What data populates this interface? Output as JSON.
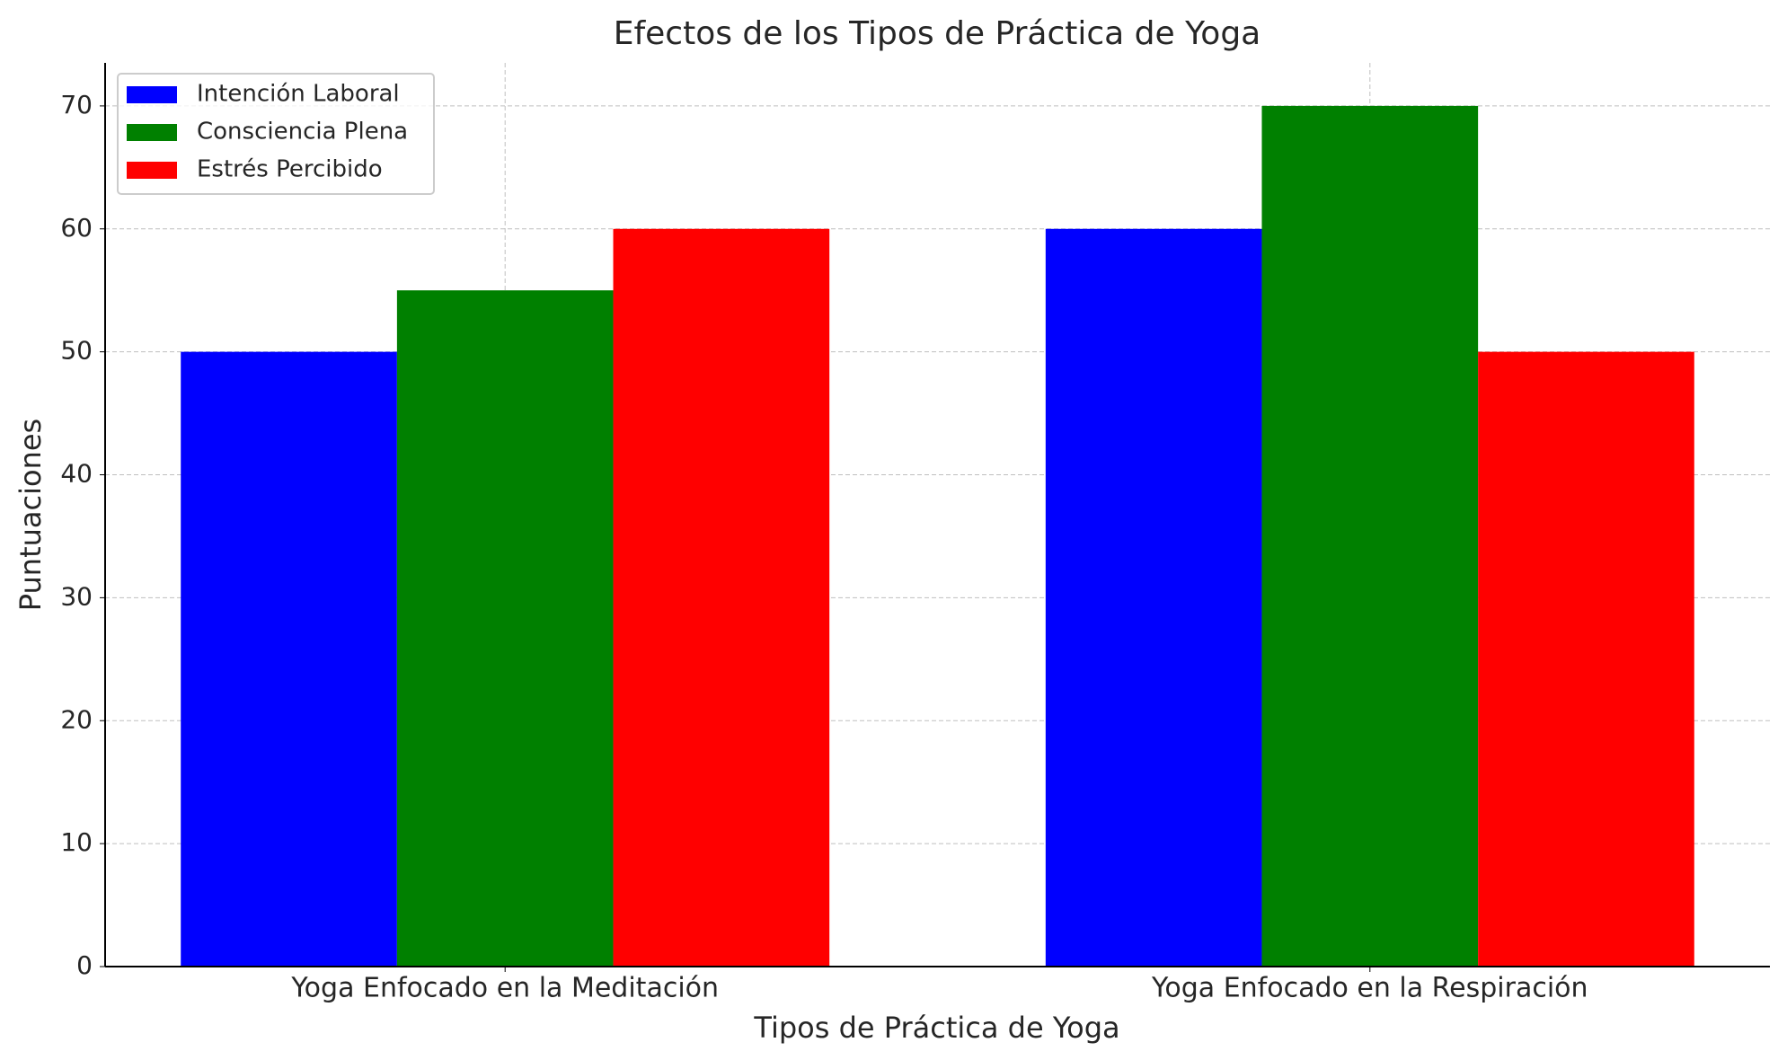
{
  "chart_data": {
    "type": "bar",
    "title": "Efectos de los Tipos de Práctica de Yoga",
    "x_label": "Tipos de Práctica de Yoga",
    "y_label": "Puntuaciones",
    "categories": [
      "Yoga Enfocado en la Meditación",
      "Yoga Enfocado en la Respiración"
    ],
    "series": [
      {
        "name": "Intención Laboral",
        "color": "#0000ff",
        "values": [
          50,
          60
        ]
      },
      {
        "name": "Consciencia Plena",
        "color": "#008000",
        "values": [
          55,
          70
        ]
      },
      {
        "name": "Estrés Percibido",
        "color": "#ff0000",
        "values": [
          60,
          50
        ]
      }
    ],
    "ylim": [
      0,
      73.5
    ],
    "yticks": [
      0,
      10,
      20,
      30,
      40,
      50,
      60,
      70
    ],
    "grid": true,
    "legend": "upper left"
  }
}
